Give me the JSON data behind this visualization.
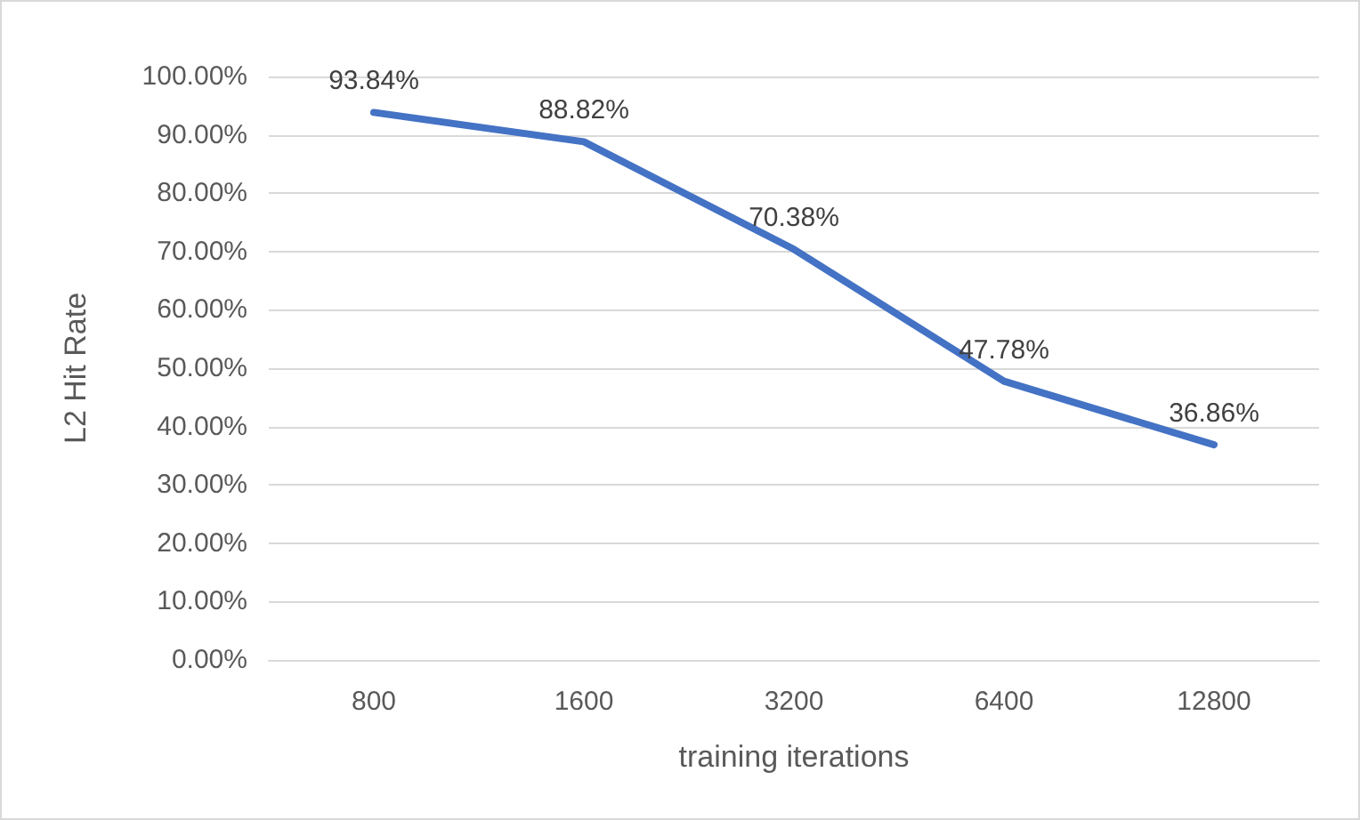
{
  "chart_data": {
    "type": "line",
    "xlabel": "training iterations",
    "ylabel": "L2 Hit Rate",
    "categories": [
      "800",
      "1600",
      "3200",
      "6400",
      "12800"
    ],
    "series": [
      {
        "color": "#4472c4",
        "values": [
          93.84,
          88.82,
          70.38,
          47.78,
          36.86
        ],
        "value_labels": [
          "93.84%",
          "88.82%",
          "70.38%",
          "47.78%",
          "36.86%"
        ]
      }
    ],
    "ylim": [
      0,
      100
    ],
    "yticks": [
      {
        "value": 0,
        "label": "0.00%"
      },
      {
        "value": 10,
        "label": "10.00%"
      },
      {
        "value": 20,
        "label": "20.00%"
      },
      {
        "value": 30,
        "label": "30.00%"
      },
      {
        "value": 40,
        "label": "40.00%"
      },
      {
        "value": 50,
        "label": "50.00%"
      },
      {
        "value": 60,
        "label": "60.00%"
      },
      {
        "value": 70,
        "label": "70.00%"
      },
      {
        "value": 80,
        "label": "80.00%"
      },
      {
        "value": 90,
        "label": "90.00%"
      },
      {
        "value": 100,
        "label": "100.00%"
      }
    ],
    "grid": "y",
    "marker": "none",
    "line_style": "solid"
  }
}
